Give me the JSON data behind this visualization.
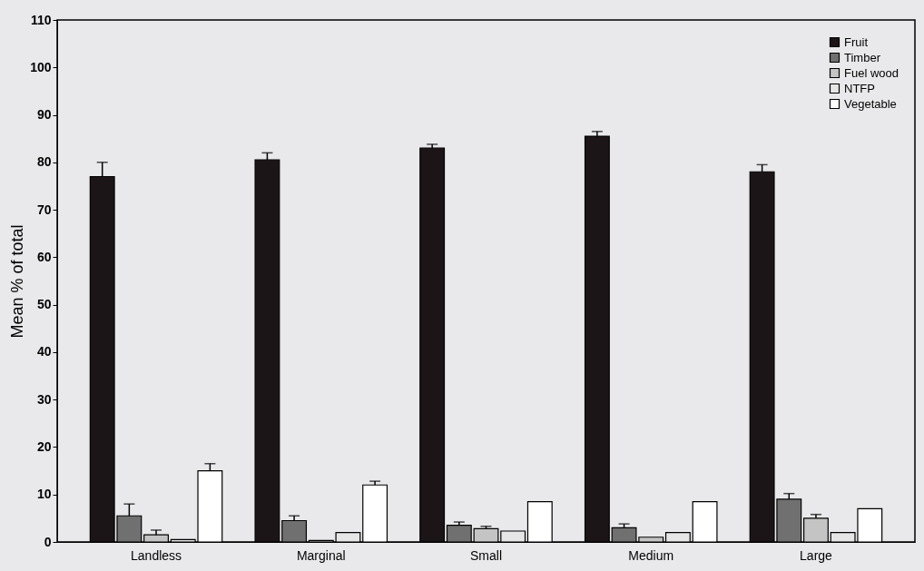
{
  "chart_data": {
    "type": "bar",
    "ylabel": "Mean % of total",
    "categories": [
      "Landless",
      "Marginal",
      "Small",
      "Medium",
      "Large"
    ],
    "series": [
      {
        "name": "Fruit",
        "color": "#1c1518",
        "values": [
          77,
          80.5,
          83,
          85.5,
          78
        ],
        "errors": [
          3,
          1.5,
          0.8,
          1,
          1.5
        ]
      },
      {
        "name": "Timber",
        "color": "#707070",
        "values": [
          5.5,
          4.5,
          3.5,
          3,
          9
        ],
        "errors": [
          2.5,
          1,
          0.7,
          0.8,
          1.2
        ]
      },
      {
        "name": "Fuel wood",
        "color": "#c4c4c4",
        "values": [
          1.5,
          0.3,
          2.8,
          1,
          5
        ],
        "errors": [
          1,
          null,
          0.5,
          null,
          0.8
        ]
      },
      {
        "name": "NTFP",
        "color": "#e6e6e6",
        "values": [
          0.5,
          2,
          2.3,
          2,
          2
        ],
        "errors": [
          null,
          null,
          null,
          null,
          null
        ]
      },
      {
        "name": "Vegetable",
        "color": "#ffffff",
        "values": [
          15,
          12,
          8.5,
          8.5,
          7
        ],
        "errors": [
          1.5,
          0.8,
          null,
          null,
          null
        ]
      }
    ],
    "ylim": [
      0,
      110
    ],
    "yticks": [
      0,
      10,
      20,
      30,
      40,
      50,
      60,
      70,
      80,
      90,
      100,
      110
    ],
    "grid": false,
    "legend": "top right"
  }
}
